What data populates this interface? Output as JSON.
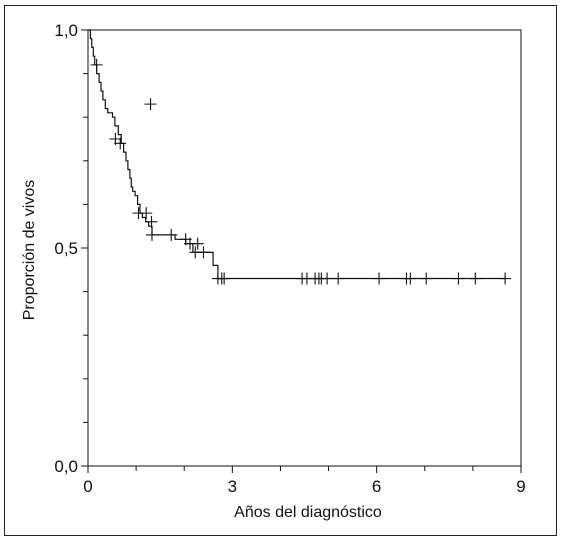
{
  "chart_data": {
    "type": "line",
    "subtype": "kaplan-meier survival curve",
    "title": "",
    "xlabel": "Años del diagnóstico",
    "ylabel": "Proporción de vivos",
    "xlim": [
      0,
      9
    ],
    "ylim": [
      0,
      1
    ],
    "x_ticks": [
      0,
      3,
      6,
      9
    ],
    "x_tick_labels": [
      "0",
      "3",
      "6",
      "9"
    ],
    "y_ticks": [
      0,
      0.5,
      1
    ],
    "y_tick_labels": [
      "0,0",
      "0,5",
      "1,0"
    ],
    "y_minor_ticks": [
      0.1,
      0.2,
      0.3,
      0.4,
      0.6,
      0.7,
      0.8,
      0.9
    ],
    "x_minor_ticks": [
      1,
      2,
      4,
      5,
      7,
      8
    ],
    "grid": false,
    "legend": "none",
    "line_color": "#111111",
    "series": [
      {
        "steps": [
          [
            0,
            1.0
          ],
          [
            0.05,
            0.98
          ],
          [
            0.08,
            0.96
          ],
          [
            0.11,
            0.94
          ],
          [
            0.14,
            0.92
          ],
          [
            0.18,
            0.9
          ],
          [
            0.23,
            0.88
          ],
          [
            0.27,
            0.86
          ],
          [
            0.31,
            0.84
          ],
          [
            0.36,
            0.82
          ],
          [
            0.41,
            0.81
          ],
          [
            0.51,
            0.8
          ],
          [
            0.56,
            0.78
          ],
          [
            0.63,
            0.76
          ],
          [
            0.69,
            0.74
          ],
          [
            0.74,
            0.72
          ],
          [
            0.79,
            0.7
          ],
          [
            0.83,
            0.68
          ],
          [
            0.87,
            0.66
          ],
          [
            0.9,
            0.64
          ],
          [
            0.93,
            0.63
          ],
          [
            0.98,
            0.62
          ],
          [
            1.03,
            0.6
          ],
          [
            1.08,
            0.58
          ],
          [
            1.13,
            0.57
          ],
          [
            1.2,
            0.56
          ],
          [
            1.26,
            0.55
          ],
          [
            1.33,
            0.53
          ],
          [
            1.63,
            0.53
          ],
          [
            1.81,
            0.52
          ],
          [
            2.03,
            0.51
          ],
          [
            2.18,
            0.49
          ],
          [
            2.6,
            0.46
          ],
          [
            2.7,
            0.43
          ],
          [
            8.7,
            0.43
          ]
        ],
        "censored": [
          [
            0.18,
            0.92
          ],
          [
            0.57,
            0.75
          ],
          [
            0.67,
            0.74
          ],
          [
            1.05,
            0.58
          ],
          [
            1.21,
            0.58
          ],
          [
            1.3,
            0.83
          ],
          [
            1.32,
            0.56
          ],
          [
            1.33,
            0.53
          ],
          [
            1.73,
            0.53
          ],
          [
            2.03,
            0.52
          ],
          [
            2.12,
            0.51
          ],
          [
            2.28,
            0.51
          ],
          [
            2.23,
            0.49
          ],
          [
            2.4,
            0.49
          ],
          [
            2.7,
            0.43
          ],
          [
            2.78,
            0.43
          ],
          [
            2.83,
            0.43
          ],
          [
            4.45,
            0.43
          ],
          [
            4.55,
            0.43
          ],
          [
            4.72,
            0.43
          ],
          [
            4.8,
            0.43
          ],
          [
            4.85,
            0.43
          ],
          [
            4.97,
            0.43
          ],
          [
            5.2,
            0.43
          ],
          [
            6.05,
            0.43
          ],
          [
            6.62,
            0.43
          ],
          [
            6.7,
            0.43
          ],
          [
            7.03,
            0.43
          ],
          [
            7.7,
            0.43
          ],
          [
            8.05,
            0.43
          ],
          [
            8.67,
            0.43
          ]
        ]
      }
    ]
  }
}
